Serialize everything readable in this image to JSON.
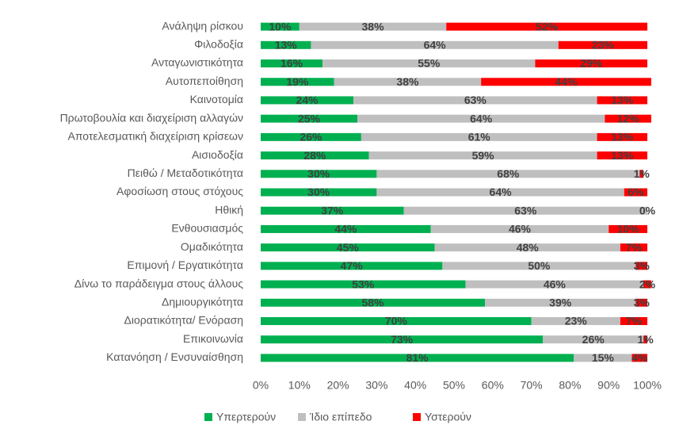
{
  "chart_data": {
    "type": "stacked-bar-horizontal",
    "categories": [
      "Ανάληψη ρίσκου",
      "Φιλοδοξία",
      "Ανταγωνιστικότητα",
      "Αυτοπεποίθηση",
      "Καινοτομία",
      "Πρωτοβουλία και διαχείριση αλλαγών",
      "Αποτελεσματική διαχείριση κρίσεων",
      "Αισιοδοξία",
      "Πειθώ / Μεταδοτικότητα",
      "Αφοσίωση στους στόχους",
      "Ηθική",
      "Ενθουσιασμός",
      "Ομαδικότητα",
      "Επιμονή / Εργατικότητα",
      "Δίνω το παράδειγμα στους άλλους",
      "Δημιουργικότητα",
      "Διορατικότητα/ Ενόραση",
      "Επικοινωνία",
      "Κατανόηση / Ενσυναίσθηση"
    ],
    "series": [
      {
        "name": "Υπερτερούν",
        "color": "#00b050",
        "values": [
          10,
          13,
          16,
          19,
          24,
          25,
          26,
          28,
          30,
          30,
          37,
          44,
          45,
          47,
          53,
          58,
          70,
          73,
          81
        ],
        "value_labels": [
          "10%",
          "13%",
          "16%",
          "19%",
          "24%",
          "25%",
          "26%",
          "28%",
          "30%",
          "30%",
          "37%",
          "44%",
          "45%",
          "47%",
          "53%",
          "58%",
          "70%",
          "73%",
          "81%"
        ]
      },
      {
        "name": "Ίδιο επίπεδο",
        "color": "#bfbfbf",
        "values": [
          38,
          64,
          55,
          38,
          63,
          64,
          61,
          59,
          68,
          64,
          63,
          46,
          48,
          50,
          46,
          39,
          23,
          26,
          15
        ],
        "value_labels": [
          "38%",
          "64%",
          "55%",
          "38%",
          "63%",
          "64%",
          "61%",
          "59%",
          "68%",
          "64%",
          "63%",
          "46%",
          "48%",
          "50%",
          "46%",
          "39%",
          "23%",
          "26%",
          "15%"
        ]
      },
      {
        "name": "Υστερούν",
        "color": "#ff0000",
        "values": [
          52,
          23,
          29,
          44,
          13,
          12,
          13,
          13,
          1,
          6,
          0,
          10,
          7,
          3,
          2,
          3,
          7,
          1,
          4
        ],
        "value_labels": [
          "52%",
          "23%",
          "29%",
          "44%",
          "13%",
          "12%",
          "13%",
          "13%",
          "1%",
          "6%",
          "0%",
          "10%",
          "7%",
          "3%",
          "2%",
          "3%",
          "7%",
          "1%",
          "4%"
        ]
      }
    ],
    "xlim": [
      0,
      100
    ],
    "xticks": [
      {
        "value": 0,
        "label": "0%"
      },
      {
        "value": 10,
        "label": "10%"
      },
      {
        "value": 20,
        "label": "20%"
      },
      {
        "value": 30,
        "label": "30%"
      },
      {
        "value": 40,
        "label": "40%"
      },
      {
        "value": 50,
        "label": "50%"
      },
      {
        "value": 60,
        "label": "60%"
      },
      {
        "value": 70,
        "label": "70%"
      },
      {
        "value": 80,
        "label": "80%"
      },
      {
        "value": 90,
        "label": "90%"
      },
      {
        "value": 100,
        "label": "100%"
      }
    ],
    "legend": "bottom"
  }
}
